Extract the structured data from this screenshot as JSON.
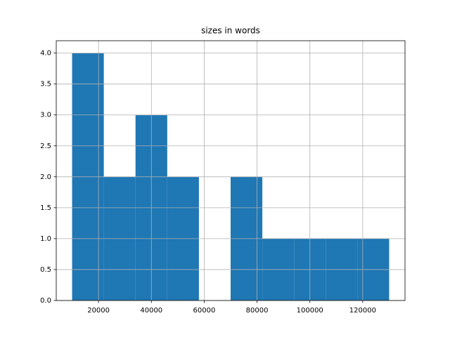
{
  "chart_data": {
    "type": "histogram",
    "title": "sizes in words",
    "bins": [
      10000,
      22000,
      34000,
      46000,
      58000,
      70000,
      82000,
      94000,
      106000,
      118000,
      130000
    ],
    "values": [
      4,
      2,
      3,
      2,
      0,
      2,
      1,
      1,
      1,
      1
    ],
    "color": "#1f77b4",
    "xlim": [
      4000,
      136000
    ],
    "xticks": [
      20000,
      40000,
      60000,
      80000,
      100000,
      120000
    ],
    "ylim": [
      0,
      4.2
    ],
    "yticks": [
      {
        "value": 0,
        "label": "0.0"
      },
      {
        "value": 0.5,
        "label": "0.5"
      },
      {
        "value": 1,
        "label": "1.0"
      },
      {
        "value": 1.5,
        "label": "1.5"
      },
      {
        "value": 2,
        "label": "2.0"
      },
      {
        "value": 2.5,
        "label": "2.5"
      },
      {
        "value": 3,
        "label": "3.0"
      },
      {
        "value": 3.5,
        "label": "3.5"
      },
      {
        "value": 4,
        "label": "4.0"
      }
    ],
    "grid": true
  }
}
